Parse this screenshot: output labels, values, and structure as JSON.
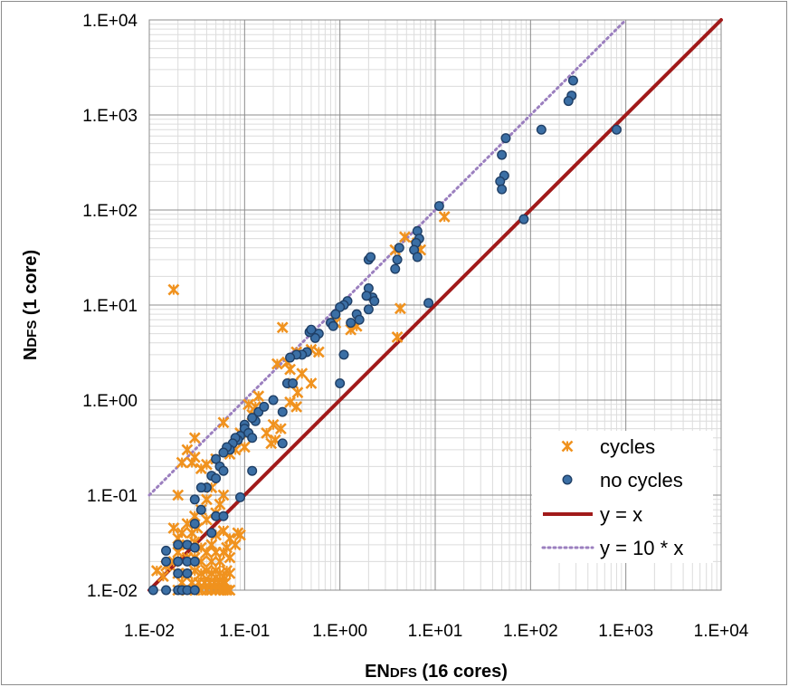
{
  "chart_data": {
    "type": "scatter",
    "xlabel": "ENDFS (16 cores)",
    "ylabel": "NDFS (1 core)",
    "xlabel_parts": [
      {
        "text": "EN",
        "small": false
      },
      {
        "text": "DFS",
        "small": true
      },
      {
        "text": " (16 cores)",
        "small": false
      }
    ],
    "ylabel_parts": [
      {
        "text": "N",
        "small": false
      },
      {
        "text": "DFS",
        "small": true
      },
      {
        "text": " (1 core)",
        "small": false
      }
    ],
    "x_scale": "log",
    "y_scale": "log",
    "xlim": [
      0.01,
      10000
    ],
    "ylim": [
      0.01,
      10000
    ],
    "x_ticks": [
      "1.E-02",
      "1.E-01",
      "1.E+00",
      "1.E+01",
      "1.E+02",
      "1.E+03",
      "1.E+04"
    ],
    "y_ticks": [
      "1.E-02",
      "1.E-01",
      "1.E+00",
      "1.E+01",
      "1.E+02",
      "1.E+03",
      "1.E+04"
    ],
    "grid": true,
    "legend_position": "bottom-right",
    "colors": {
      "cycles": "#f0921e",
      "no_cycles": "#3b6fa5",
      "yx": "#a11a1a",
      "y10x": "#9b7fbf"
    },
    "series": [
      {
        "name": "cycles",
        "marker": "x",
        "points": [
          [
            0.018,
            14.5
          ],
          [
            12.5,
            85
          ],
          [
            6.2,
            42
          ],
          [
            4.8,
            52
          ],
          [
            7.0,
            38
          ],
          [
            3.8,
            38
          ],
          [
            6.5,
            45
          ],
          [
            4.3,
            9.2
          ],
          [
            4.0,
            4.6
          ],
          [
            1.5,
            6.0
          ],
          [
            1.3,
            5.5
          ],
          [
            0.9,
            6.5
          ],
          [
            0.25,
            5.8
          ],
          [
            0.5,
            3.4
          ],
          [
            0.6,
            3.2
          ],
          [
            0.35,
            3.2
          ],
          [
            0.28,
            2.5
          ],
          [
            0.22,
            2.4
          ],
          [
            0.3,
            2.1
          ],
          [
            0.4,
            1.9
          ],
          [
            0.32,
            1.5
          ],
          [
            0.5,
            1.5
          ],
          [
            0.36,
            1.2
          ],
          [
            0.35,
            0.85
          ],
          [
            0.3,
            0.95
          ],
          [
            0.14,
            1.1
          ],
          [
            0.11,
            0.9
          ],
          [
            0.13,
            0.85
          ],
          [
            0.12,
            0.7
          ],
          [
            0.2,
            0.55
          ],
          [
            0.24,
            0.5
          ],
          [
            0.17,
            0.45
          ],
          [
            0.21,
            0.38
          ],
          [
            0.19,
            0.35
          ],
          [
            0.06,
            0.58
          ],
          [
            0.09,
            0.45
          ],
          [
            0.08,
            0.3
          ],
          [
            0.1,
            0.32
          ],
          [
            0.07,
            0.27
          ],
          [
            0.05,
            0.24
          ],
          [
            0.04,
            0.21
          ],
          [
            0.035,
            0.19
          ],
          [
            0.03,
            0.25
          ],
          [
            0.028,
            0.22
          ],
          [
            0.022,
            0.22
          ],
          [
            0.03,
            0.4
          ],
          [
            0.025,
            0.3
          ],
          [
            0.02,
            0.1
          ],
          [
            0.045,
            0.12
          ],
          [
            0.04,
            0.09
          ],
          [
            0.06,
            0.1
          ],
          [
            0.055,
            0.08
          ],
          [
            0.05,
            0.065
          ],
          [
            0.04,
            0.055
          ],
          [
            0.035,
            0.07
          ],
          [
            0.03,
            0.06
          ],
          [
            0.025,
            0.05
          ],
          [
            0.018,
            0.045
          ],
          [
            0.022,
            0.04
          ],
          [
            0.028,
            0.04
          ],
          [
            0.032,
            0.045
          ],
          [
            0.02,
            0.035
          ],
          [
            0.025,
            0.03
          ],
          [
            0.03,
            0.032
          ],
          [
            0.035,
            0.028
          ],
          [
            0.045,
            0.03
          ],
          [
            0.05,
            0.038
          ],
          [
            0.06,
            0.042
          ],
          [
            0.07,
            0.035
          ],
          [
            0.08,
            0.03
          ],
          [
            0.085,
            0.04
          ],
          [
            0.09,
            0.038
          ],
          [
            0.065,
            0.028
          ],
          [
            0.04,
            0.025
          ],
          [
            0.05,
            0.025
          ],
          [
            0.06,
            0.025
          ],
          [
            0.07,
            0.022
          ],
          [
            0.055,
            0.02
          ],
          [
            0.045,
            0.02
          ],
          [
            0.035,
            0.02
          ],
          [
            0.03,
            0.022
          ],
          [
            0.025,
            0.022
          ],
          [
            0.02,
            0.025
          ],
          [
            0.018,
            0.02
          ],
          [
            0.015,
            0.018
          ],
          [
            0.012,
            0.016
          ],
          [
            0.014,
            0.014
          ],
          [
            0.02,
            0.015
          ],
          [
            0.025,
            0.015
          ],
          [
            0.03,
            0.016
          ],
          [
            0.035,
            0.015
          ],
          [
            0.04,
            0.016
          ],
          [
            0.045,
            0.015
          ],
          [
            0.05,
            0.016
          ],
          [
            0.055,
            0.015
          ],
          [
            0.06,
            0.014
          ],
          [
            0.065,
            0.016
          ],
          [
            0.07,
            0.015
          ],
          [
            0.022,
            0.012
          ],
          [
            0.028,
            0.012
          ],
          [
            0.033,
            0.012
          ],
          [
            0.038,
            0.012
          ],
          [
            0.043,
            0.012
          ],
          [
            0.048,
            0.012
          ],
          [
            0.053,
            0.012
          ],
          [
            0.058,
            0.012
          ],
          [
            0.063,
            0.012
          ],
          [
            0.02,
            0.01
          ],
          [
            0.025,
            0.01
          ],
          [
            0.03,
            0.01
          ],
          [
            0.035,
            0.01
          ],
          [
            0.04,
            0.01
          ],
          [
            0.045,
            0.01
          ],
          [
            0.05,
            0.01
          ],
          [
            0.055,
            0.01
          ],
          [
            0.06,
            0.01
          ],
          [
            0.065,
            0.01
          ],
          [
            0.07,
            0.01
          ]
        ]
      },
      {
        "name": "no cycles",
        "marker": "circle",
        "points": [
          [
            280,
            2300
          ],
          [
            270,
            1600
          ],
          [
            250,
            1400
          ],
          [
            800,
            700
          ],
          [
            130,
            700
          ],
          [
            55,
            570
          ],
          [
            50,
            380
          ],
          [
            53,
            230
          ],
          [
            48,
            200
          ],
          [
            50,
            165
          ],
          [
            85,
            80
          ],
          [
            11,
            110
          ],
          [
            6.5,
            60
          ],
          [
            6.8,
            50
          ],
          [
            6.3,
            45
          ],
          [
            6.0,
            38
          ],
          [
            6.5,
            32
          ],
          [
            4.0,
            30
          ],
          [
            3.8,
            24
          ],
          [
            4.2,
            40
          ],
          [
            2.0,
            30
          ],
          [
            2.1,
            32
          ],
          [
            2.0,
            15
          ],
          [
            2.2,
            12
          ],
          [
            1.9,
            12.5
          ],
          [
            2.3,
            11
          ],
          [
            2.0,
            9
          ],
          [
            1.5,
            8
          ],
          [
            1.6,
            7
          ],
          [
            1.3,
            6.5
          ],
          [
            1.2,
            11
          ],
          [
            1.1,
            10
          ],
          [
            1.0,
            9.5
          ],
          [
            0.9,
            8
          ],
          [
            0.8,
            6.5
          ],
          [
            0.85,
            6
          ],
          [
            8.5,
            10.5
          ],
          [
            1.0,
            1.5
          ],
          [
            1.1,
            3.0
          ],
          [
            0.6,
            5.0
          ],
          [
            0.55,
            4.5
          ],
          [
            0.48,
            5.2
          ],
          [
            0.5,
            5.5
          ],
          [
            0.45,
            3.2
          ],
          [
            0.4,
            3.0
          ],
          [
            0.35,
            3.0
          ],
          [
            0.3,
            2.8
          ],
          [
            0.28,
            1.5
          ],
          [
            0.32,
            1.5
          ],
          [
            0.25,
            0.75
          ],
          [
            0.25,
            0.35
          ],
          [
            0.12,
            0.18
          ],
          [
            0.09,
            0.095
          ],
          [
            0.14,
            0.75
          ],
          [
            0.13,
            0.6
          ],
          [
            0.12,
            0.65
          ],
          [
            0.16,
            0.85
          ],
          [
            0.2,
            1.0
          ],
          [
            0.1,
            0.55
          ],
          [
            0.1,
            0.5
          ],
          [
            0.11,
            0.45
          ],
          [
            0.12,
            0.4
          ],
          [
            0.09,
            0.42
          ],
          [
            0.085,
            0.38
          ],
          [
            0.08,
            0.4
          ],
          [
            0.075,
            0.35
          ],
          [
            0.07,
            0.3
          ],
          [
            0.065,
            0.32
          ],
          [
            0.06,
            0.28
          ],
          [
            0.05,
            0.24
          ],
          [
            0.055,
            0.2
          ],
          [
            0.06,
            0.18
          ],
          [
            0.045,
            0.16
          ],
          [
            0.04,
            0.12
          ],
          [
            0.035,
            0.12
          ],
          [
            0.03,
            0.09
          ],
          [
            0.05,
            0.15
          ],
          [
            0.035,
            0.07
          ],
          [
            0.03,
            0.05
          ],
          [
            0.05,
            0.06
          ],
          [
            0.06,
            0.06
          ],
          [
            0.045,
            0.04
          ],
          [
            0.025,
            0.03
          ],
          [
            0.02,
            0.03
          ],
          [
            0.03,
            0.028
          ],
          [
            0.015,
            0.026
          ],
          [
            0.015,
            0.02
          ],
          [
            0.02,
            0.02
          ],
          [
            0.025,
            0.02
          ],
          [
            0.03,
            0.02
          ],
          [
            0.02,
            0.015
          ],
          [
            0.025,
            0.015
          ],
          [
            0.011,
            0.01
          ],
          [
            0.015,
            0.01
          ],
          [
            0.02,
            0.01
          ],
          [
            0.022,
            0.01
          ],
          [
            0.025,
            0.01
          ],
          [
            0.03,
            0.01
          ]
        ]
      },
      {
        "name": "y = x",
        "type": "line",
        "slope": 1,
        "style": "solid"
      },
      {
        "name": "y = 10 * x",
        "type": "line",
        "slope": 10,
        "style": "dotted"
      }
    ]
  }
}
